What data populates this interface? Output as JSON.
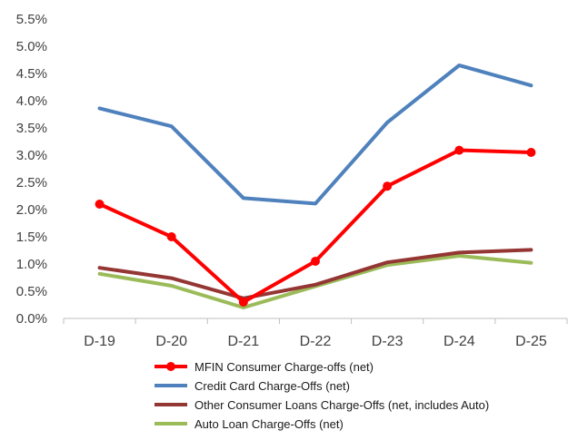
{
  "chart_data": {
    "type": "line",
    "categories": [
      "D-19",
      "D-20",
      "D-21",
      "D-22",
      "D-23",
      "D-24",
      "D-25"
    ],
    "ylim": [
      0,
      5.5
    ],
    "ytick_values": [
      0,
      0.5,
      1,
      1.5,
      2,
      2.5,
      3,
      3.5,
      4,
      4.5,
      5,
      5.5
    ],
    "ytick_labels": [
      "0.0%",
      "0.5%",
      "1.0%",
      "1.5%",
      "2.0%",
      "2.5%",
      "3.0%",
      "3.5%",
      "4.0%",
      "4.5%",
      "5.0%",
      "5.5%"
    ],
    "grid": false,
    "legend_position": "bottom",
    "series": [
      {
        "name": "MFIN Consumer Charge-offs (net)",
        "values": [
          2.1,
          1.5,
          0.3,
          1.05,
          2.43,
          3.09,
          3.05
        ],
        "color": "#ff0000",
        "markers": true
      },
      {
        "name": "Credit Card Charge-Offs (net)",
        "values": [
          3.86,
          3.53,
          2.21,
          2.11,
          3.6,
          4.65,
          4.28
        ],
        "color": "#4f81bd",
        "markers": false
      },
      {
        "name": "Other Consumer Loans Charge-Offs (net, includes Auto)",
        "values": [
          0.93,
          0.74,
          0.37,
          0.62,
          1.03,
          1.21,
          1.26
        ],
        "color": "#943634",
        "markers": false
      },
      {
        "name": "Auto Loan Charge-Offs (net)",
        "values": [
          0.82,
          0.6,
          0.2,
          0.59,
          0.98,
          1.15,
          1.02
        ],
        "color": "#9bbb59",
        "markers": false
      }
    ]
  }
}
